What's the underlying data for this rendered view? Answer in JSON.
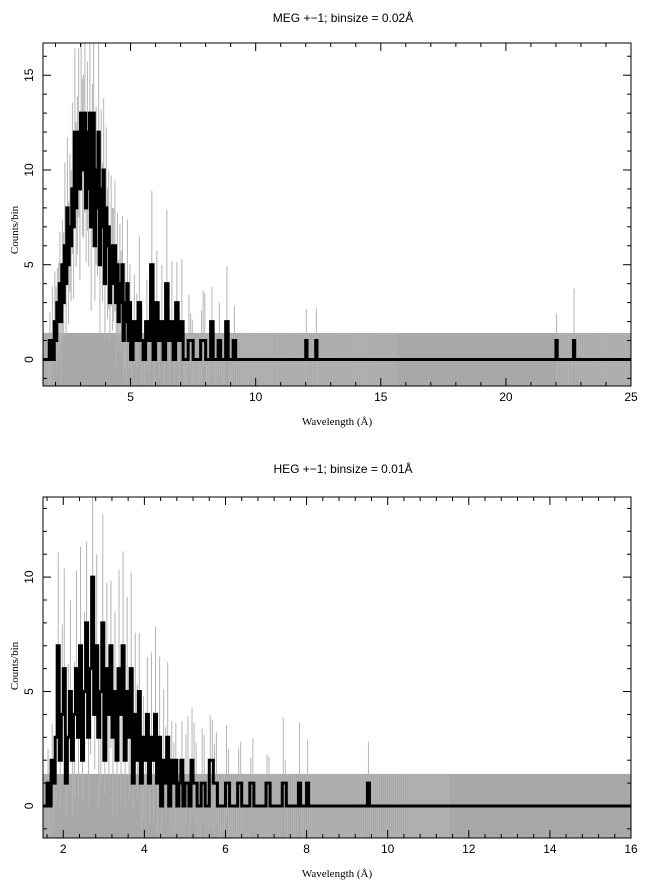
{
  "chart_data": [
    {
      "type": "line",
      "title": "MEG +−1; binsize = 0.02Å",
      "xlabel": "Wavelength (Å)",
      "ylabel": "Counts/bin",
      "xlim": [
        1.5,
        25
      ],
      "ylim": [
        -1.4,
        16.7
      ],
      "x_ticks": [
        5,
        10,
        15,
        20,
        25
      ],
      "y_ticks": [
        0,
        5,
        10,
        15
      ],
      "colors": {
        "data": "#000000",
        "errors": "#b4b4b4",
        "background_band": "#a8a8a8"
      },
      "background_band": {
        "x_from": 1.5,
        "x_to": 25,
        "y_low": -1.4,
        "y_high": 1.4
      },
      "series": [
        {
          "style": "steps",
          "points": [
            [
              1.5,
              0
            ],
            [
              1.6,
              0
            ],
            [
              1.7,
              0
            ],
            [
              1.75,
              1
            ],
            [
              1.8,
              0
            ],
            [
              1.85,
              1
            ],
            [
              1.9,
              0
            ],
            [
              1.95,
              2
            ],
            [
              2.0,
              1
            ],
            [
              2.05,
              3
            ],
            [
              2.1,
              2
            ],
            [
              2.15,
              4
            ],
            [
              2.2,
              2
            ],
            [
              2.25,
              5
            ],
            [
              2.3,
              3
            ],
            [
              2.35,
              6
            ],
            [
              2.4,
              4
            ],
            [
              2.45,
              8
            ],
            [
              2.5,
              5
            ],
            [
              2.55,
              7
            ],
            [
              2.6,
              6
            ],
            [
              2.65,
              9
            ],
            [
              2.7,
              7
            ],
            [
              2.75,
              12
            ],
            [
              2.8,
              8
            ],
            [
              2.85,
              10
            ],
            [
              2.9,
              12
            ],
            [
              2.95,
              9
            ],
            [
              3.0,
              13
            ],
            [
              3.05,
              10
            ],
            [
              3.1,
              11
            ],
            [
              3.15,
              13
            ],
            [
              3.2,
              8
            ],
            [
              3.25,
              12
            ],
            [
              3.3,
              9
            ],
            [
              3.35,
              13
            ],
            [
              3.4,
              7
            ],
            [
              3.45,
              11
            ],
            [
              3.5,
              13
            ],
            [
              3.55,
              6
            ],
            [
              3.6,
              10
            ],
            [
              3.65,
              8
            ],
            [
              3.7,
              12
            ],
            [
              3.75,
              5
            ],
            [
              3.8,
              9
            ],
            [
              3.85,
              7
            ],
            [
              3.9,
              10
            ],
            [
              3.95,
              4
            ],
            [
              4.0,
              8
            ],
            [
              4.05,
              6
            ],
            [
              4.1,
              7
            ],
            [
              4.15,
              3
            ],
            [
              4.2,
              6
            ],
            [
              4.25,
              5
            ],
            [
              4.3,
              4
            ],
            [
              4.35,
              6
            ],
            [
              4.4,
              3
            ],
            [
              4.45,
              5
            ],
            [
              4.5,
              2
            ],
            [
              4.55,
              4
            ],
            [
              4.6,
              3
            ],
            [
              4.65,
              5
            ],
            [
              4.7,
              1
            ],
            [
              4.75,
              3
            ],
            [
              4.8,
              2
            ],
            [
              4.85,
              4
            ],
            [
              4.9,
              1
            ],
            [
              4.95,
              3
            ],
            [
              5.0,
              0
            ],
            [
              5.1,
              2
            ],
            [
              5.2,
              1
            ],
            [
              5.3,
              3
            ],
            [
              5.4,
              1
            ],
            [
              5.5,
              0
            ],
            [
              5.6,
              2
            ],
            [
              5.7,
              1
            ],
            [
              5.8,
              5
            ],
            [
              5.9,
              0
            ],
            [
              6.0,
              3
            ],
            [
              6.1,
              1
            ],
            [
              6.2,
              2
            ],
            [
              6.3,
              0
            ],
            [
              6.4,
              4
            ],
            [
              6.5,
              1
            ],
            [
              6.6,
              2
            ],
            [
              6.7,
              0
            ],
            [
              6.8,
              3
            ],
            [
              6.9,
              1
            ],
            [
              7.0,
              2
            ],
            [
              7.1,
              0
            ],
            [
              7.3,
              1
            ],
            [
              7.5,
              0
            ],
            [
              7.8,
              1
            ],
            [
              8.0,
              0
            ],
            [
              8.2,
              2
            ],
            [
              8.3,
              0
            ],
            [
              8.5,
              1
            ],
            [
              8.6,
              0
            ],
            [
              8.8,
              2
            ],
            [
              8.9,
              0
            ],
            [
              9.1,
              1
            ],
            [
              9.2,
              0
            ],
            [
              12.0,
              1
            ],
            [
              12.05,
              0
            ],
            [
              12.4,
              1
            ],
            [
              12.45,
              0
            ],
            [
              22.0,
              1
            ],
            [
              22.05,
              0
            ],
            [
              22.7,
              1
            ],
            [
              22.75,
              0
            ],
            [
              25,
              0
            ]
          ]
        }
      ]
    },
    {
      "type": "line",
      "title": "HEG +−1; binsize = 0.01Å",
      "xlabel": "Wavelength (Å)",
      "ylabel": "Counts/bin",
      "xlim": [
        1.5,
        16
      ],
      "ylim": [
        -1.4,
        13.5
      ],
      "x_ticks": [
        2,
        4,
        6,
        8,
        10,
        12,
        14,
        16
      ],
      "y_ticks": [
        0,
        5,
        10
      ],
      "colors": {
        "data": "#000000",
        "errors": "#b4b4b4",
        "background_band": "#a8a8a8"
      },
      "background_band": {
        "x_from": 1.5,
        "x_to": 16,
        "y_low": -1.4,
        "y_high": 1.4
      },
      "series": [
        {
          "style": "steps",
          "points": [
            [
              1.5,
              0
            ],
            [
              1.6,
              1
            ],
            [
              1.65,
              0
            ],
            [
              1.7,
              2
            ],
            [
              1.75,
              1
            ],
            [
              1.8,
              3
            ],
            [
              1.85,
              7
            ],
            [
              1.9,
              2
            ],
            [
              1.95,
              4
            ],
            [
              2.0,
              6
            ],
            [
              2.05,
              1
            ],
            [
              2.1,
              3
            ],
            [
              2.15,
              5
            ],
            [
              2.2,
              2
            ],
            [
              2.25,
              4
            ],
            [
              2.3,
              6
            ],
            [
              2.35,
              3
            ],
            [
              2.4,
              7
            ],
            [
              2.45,
              2
            ],
            [
              2.5,
              5
            ],
            [
              2.55,
              8
            ],
            [
              2.6,
              3
            ],
            [
              2.65,
              6
            ],
            [
              2.7,
              10
            ],
            [
              2.75,
              4
            ],
            [
              2.8,
              7
            ],
            [
              2.85,
              3
            ],
            [
              2.9,
              5
            ],
            [
              2.95,
              8
            ],
            [
              3.0,
              2
            ],
            [
              3.05,
              6
            ],
            [
              3.1,
              4
            ],
            [
              3.15,
              7
            ],
            [
              3.2,
              3
            ],
            [
              3.25,
              5
            ],
            [
              3.3,
              2
            ],
            [
              3.35,
              6
            ],
            [
              3.4,
              4
            ],
            [
              3.45,
              7
            ],
            [
              3.5,
              2
            ],
            [
              3.55,
              5
            ],
            [
              3.6,
              3
            ],
            [
              3.65,
              6
            ],
            [
              3.7,
              1
            ],
            [
              3.75,
              4
            ],
            [
              3.8,
              2
            ],
            [
              3.85,
              5
            ],
            [
              3.9,
              1
            ],
            [
              3.95,
              3
            ],
            [
              4.0,
              2
            ],
            [
              4.05,
              4
            ],
            [
              4.1,
              1
            ],
            [
              4.15,
              3
            ],
            [
              4.2,
              2
            ],
            [
              4.25,
              4
            ],
            [
              4.3,
              1
            ],
            [
              4.35,
              3
            ],
            [
              4.4,
              0
            ],
            [
              4.45,
              2
            ],
            [
              4.5,
              1
            ],
            [
              4.55,
              3
            ],
            [
              4.6,
              0
            ],
            [
              4.65,
              2
            ],
            [
              4.7,
              1
            ],
            [
              4.75,
              2
            ],
            [
              4.8,
              0
            ],
            [
              4.85,
              1
            ],
            [
              4.9,
              2
            ],
            [
              4.95,
              0
            ],
            [
              5.0,
              1
            ],
            [
              5.1,
              0
            ],
            [
              5.15,
              2
            ],
            [
              5.2,
              1
            ],
            [
              5.3,
              0
            ],
            [
              5.4,
              1
            ],
            [
              5.5,
              0
            ],
            [
              5.6,
              2
            ],
            [
              5.7,
              1
            ],
            [
              5.8,
              0
            ],
            [
              6.0,
              1
            ],
            [
              6.1,
              0
            ],
            [
              6.3,
              1
            ],
            [
              6.4,
              0
            ],
            [
              6.6,
              1
            ],
            [
              6.7,
              0
            ],
            [
              7.0,
              1
            ],
            [
              7.1,
              0
            ],
            [
              7.4,
              1
            ],
            [
              7.5,
              0
            ],
            [
              7.8,
              1
            ],
            [
              7.85,
              0
            ],
            [
              8.0,
              1
            ],
            [
              8.05,
              0
            ],
            [
              9.5,
              1
            ],
            [
              9.55,
              0
            ],
            [
              16,
              0
            ]
          ]
        }
      ]
    }
  ]
}
